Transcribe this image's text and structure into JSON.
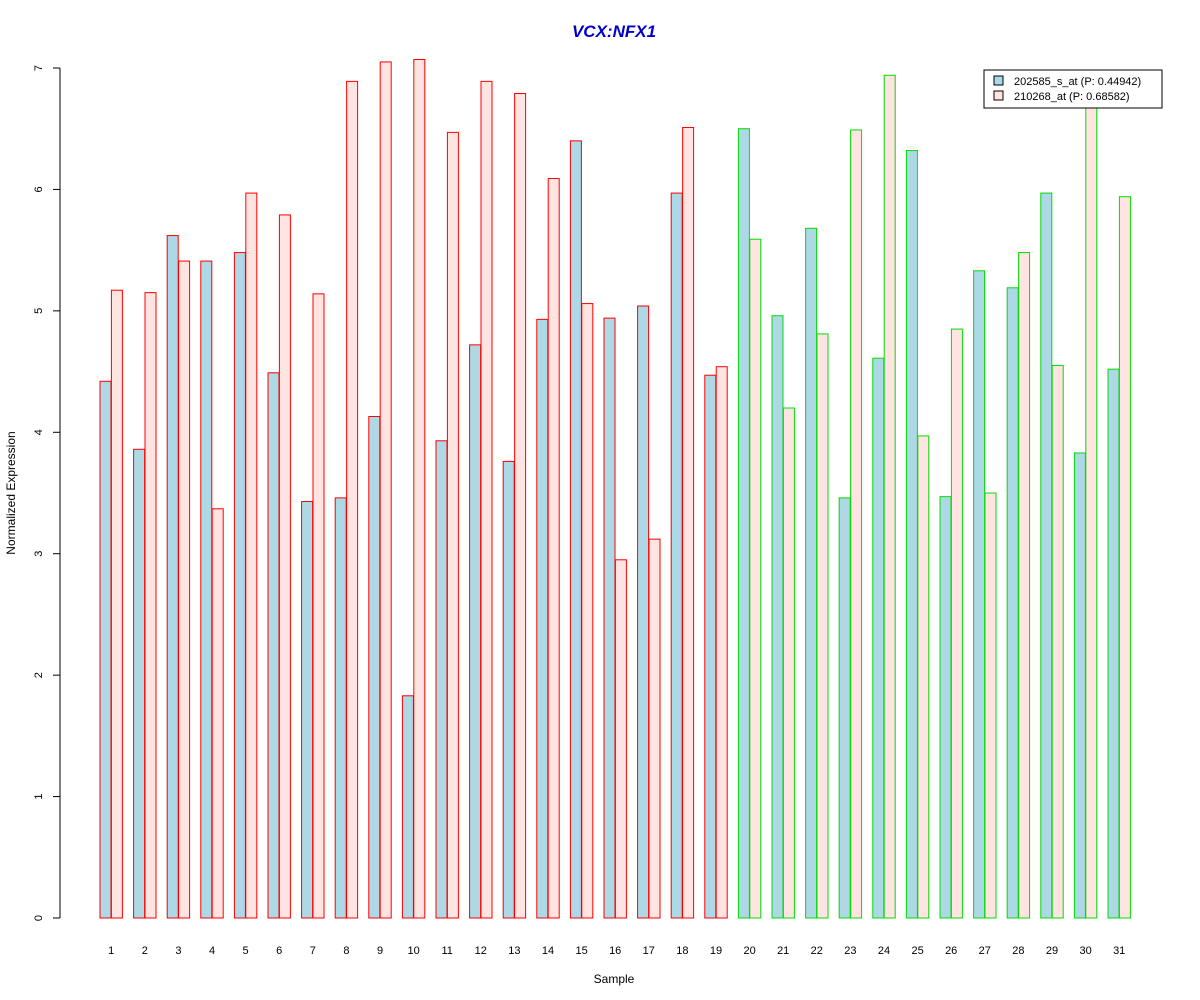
{
  "chart_data": {
    "type": "bar",
    "title": "VCX:NFX1",
    "xlabel": "Sample",
    "ylabel": "Normalized Expression",
    "ylim": [
      0,
      7
    ],
    "yticks": [
      "0",
      "1",
      "2",
      "3",
      "4",
      "5",
      "6",
      "7"
    ],
    "categories": [
      "1",
      "2",
      "3",
      "4",
      "5",
      "6",
      "7",
      "8",
      "9",
      "10",
      "11",
      "12",
      "13",
      "14",
      "15",
      "16",
      "17",
      "18",
      "19",
      "20",
      "21",
      "22",
      "23",
      "24",
      "25",
      "26",
      "27",
      "28",
      "29",
      "30",
      "31"
    ],
    "group_outline_colors": {
      "first_group": "#ff0000",
      "second_group": "#00dd00"
    },
    "first_group_size": 19,
    "grid": false,
    "legend_position": "top-right",
    "series": [
      {
        "name": "202585_s_at (P: 0.44942)",
        "fill": "#add8e6",
        "values": [
          4.42,
          3.86,
          5.62,
          5.41,
          5.48,
          4.49,
          3.43,
          3.46,
          4.13,
          1.83,
          3.93,
          4.72,
          3.76,
          4.93,
          6.4,
          4.94,
          5.04,
          5.97,
          4.47,
          6.5,
          4.96,
          5.68,
          3.46,
          4.61,
          6.32,
          3.47,
          5.33,
          5.19,
          5.97,
          3.83,
          4.52
        ]
      },
      {
        "name": "210268_at (P: 0.68582)",
        "fill": "#ffe4e1",
        "values": [
          5.17,
          5.15,
          5.41,
          3.37,
          5.97,
          5.79,
          5.14,
          6.89,
          7.05,
          7.07,
          6.47,
          6.89,
          6.79,
          6.09,
          5.06,
          2.95,
          3.12,
          6.51,
          4.54,
          5.59,
          4.2,
          4.81,
          6.49,
          6.94,
          3.97,
          4.85,
          3.5,
          5.48,
          4.55,
          6.68,
          5.94
        ]
      }
    ]
  }
}
